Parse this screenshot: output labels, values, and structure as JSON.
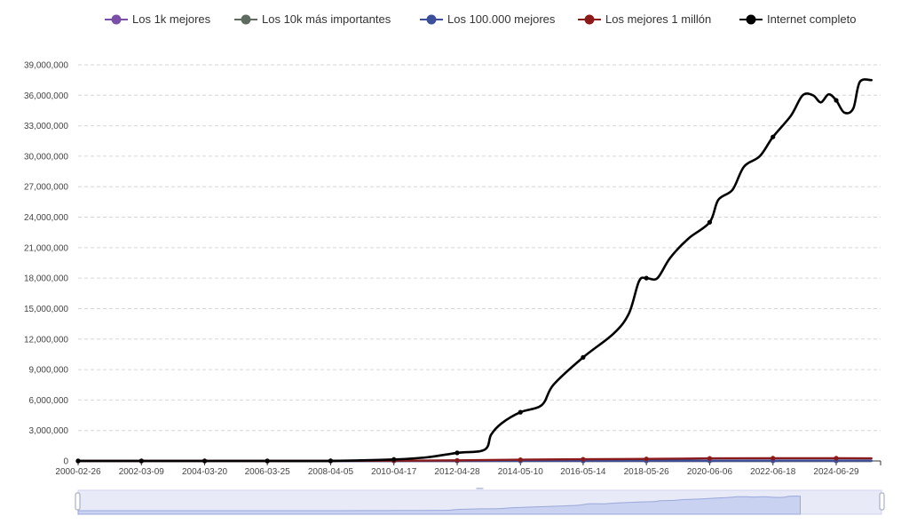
{
  "chart_data": {
    "type": "line",
    "x": [
      "2000-02-26",
      "2002-03-09",
      "2004-03-20",
      "2006-03-25",
      "2008-04-05",
      "2010-04-17",
      "2012-04-28",
      "2014-05-10",
      "2016-05-14",
      "2018-05-26",
      "2020-06-06",
      "2022-06-18",
      "2024-06-29"
    ],
    "ylim": [
      0,
      39000000
    ],
    "y_ticks": [
      0,
      3000000,
      6000000,
      9000000,
      12000000,
      15000000,
      18000000,
      21000000,
      24000000,
      27000000,
      30000000,
      33000000,
      36000000,
      39000000
    ],
    "y_tick_labels": [
      "0",
      "3,000,000",
      "6,000,000",
      "9,000,000",
      "12,000,000",
      "15,000,000",
      "18,000,000",
      "21,000,000",
      "24,000,000",
      "27,000,000",
      "30,000,000",
      "33,000,000",
      "36,000,000",
      "39,000,000"
    ],
    "grid": true,
    "legend_position": "top",
    "series": [
      {
        "name": "Los 1k mejores",
        "color": "#7b4ea8",
        "points": [
          [
            "2000-02-26",
            0
          ],
          [
            "2002-03-09",
            0
          ],
          [
            "2004-03-20",
            0
          ],
          [
            "2006-03-25",
            0
          ],
          [
            "2008-04-05",
            0
          ],
          [
            "2010-04-17",
            50
          ],
          [
            "2012-04-28",
            100
          ],
          [
            "2014-05-10",
            200
          ],
          [
            "2016-05-14",
            250
          ],
          [
            "2018-05-26",
            300
          ],
          [
            "2020-06-06",
            350
          ],
          [
            "2022-06-18",
            400
          ],
          [
            "2024-06-29",
            380
          ],
          [
            "2025-08-16",
            380
          ]
        ]
      },
      {
        "name": "Los 10k más importantes",
        "color": "#5f6b5f",
        "points": [
          [
            "2000-02-26",
            0
          ],
          [
            "2002-03-09",
            0
          ],
          [
            "2004-03-20",
            0
          ],
          [
            "2006-03-25",
            0
          ],
          [
            "2008-04-05",
            50
          ],
          [
            "2010-04-17",
            400
          ],
          [
            "2012-04-28",
            900
          ],
          [
            "2014-05-10",
            1500
          ],
          [
            "2016-05-14",
            2000
          ],
          [
            "2018-05-26",
            2500
          ],
          [
            "2020-06-06",
            3000
          ],
          [
            "2022-06-18",
            3200
          ],
          [
            "2024-06-29",
            3100
          ],
          [
            "2025-08-16",
            3100
          ]
        ]
      },
      {
        "name": "Los 100.000 mejores",
        "color": "#3b4f9b",
        "points": [
          [
            "2000-02-26",
            0
          ],
          [
            "2002-03-09",
            0
          ],
          [
            "2004-03-20",
            0
          ],
          [
            "2006-03-25",
            0
          ],
          [
            "2008-04-05",
            500
          ],
          [
            "2010-04-17",
            4000
          ],
          [
            "2012-04-28",
            9000
          ],
          [
            "2014-05-10",
            15000
          ],
          [
            "2016-05-14",
            20000
          ],
          [
            "2018-05-26",
            25000
          ],
          [
            "2020-06-06",
            30000
          ],
          [
            "2022-06-18",
            32000
          ],
          [
            "2024-06-29",
            31000
          ],
          [
            "2025-08-16",
            31000
          ]
        ]
      },
      {
        "name": "Los mejores 1 millón",
        "color": "#8b1a1a",
        "points": [
          [
            "2000-02-26",
            0
          ],
          [
            "2002-03-09",
            0
          ],
          [
            "2004-03-20",
            0
          ],
          [
            "2006-03-25",
            0
          ],
          [
            "2008-04-05",
            5000
          ],
          [
            "2010-04-17",
            30000
          ],
          [
            "2012-04-28",
            60000
          ],
          [
            "2014-05-10",
            120000
          ],
          [
            "2016-05-14",
            170000
          ],
          [
            "2018-05-26",
            200000
          ],
          [
            "2020-06-06",
            250000
          ],
          [
            "2022-06-18",
            270000
          ],
          [
            "2024-06-29",
            270000
          ],
          [
            "2025-08-16",
            250000
          ]
        ]
      },
      {
        "name": "Internet completo",
        "color": "#000000",
        "points": [
          [
            "2000-02-26",
            0
          ],
          [
            "2002-03-09",
            0
          ],
          [
            "2004-03-20",
            0
          ],
          [
            "2006-03-25",
            0
          ],
          [
            "2008-04-05",
            10000
          ],
          [
            "2010-04-17",
            150000
          ],
          [
            "2011-05-01",
            350000
          ],
          [
            "2012-04-28",
            800000
          ],
          [
            "2013-03-15",
            1100000
          ],
          [
            "2013-06-01",
            2600000
          ],
          [
            "2013-10-01",
            3700000
          ],
          [
            "2014-05-10",
            4800000
          ],
          [
            "2015-01-15",
            5500000
          ],
          [
            "2015-06-01",
            7500000
          ],
          [
            "2016-05-14",
            10200000
          ],
          [
            "2017-05-01",
            12500000
          ],
          [
            "2017-11-01",
            14500000
          ],
          [
            "2018-03-01",
            17700000
          ],
          [
            "2018-05-26",
            18000000
          ],
          [
            "2018-10-01",
            18000000
          ],
          [
            "2019-03-01",
            20000000
          ],
          [
            "2019-10-01",
            21900000
          ],
          [
            "2020-06-06",
            23500000
          ],
          [
            "2020-09-15",
            25700000
          ],
          [
            "2021-03-01",
            26700000
          ],
          [
            "2021-07-15",
            29000000
          ],
          [
            "2022-01-15",
            30000000
          ],
          [
            "2022-06-18",
            31900000
          ],
          [
            "2023-01-15",
            34000000
          ],
          [
            "2023-06-01",
            36000000
          ],
          [
            "2023-10-01",
            36000000
          ],
          [
            "2024-01-01",
            35300000
          ],
          [
            "2024-04-01",
            36100000
          ],
          [
            "2024-06-29",
            35500000
          ],
          [
            "2024-10-01",
            34300000
          ],
          [
            "2025-01-15",
            34700000
          ],
          [
            "2025-04-01",
            37300000
          ],
          [
            "2025-08-16",
            37500000
          ]
        ]
      }
    ]
  }
}
